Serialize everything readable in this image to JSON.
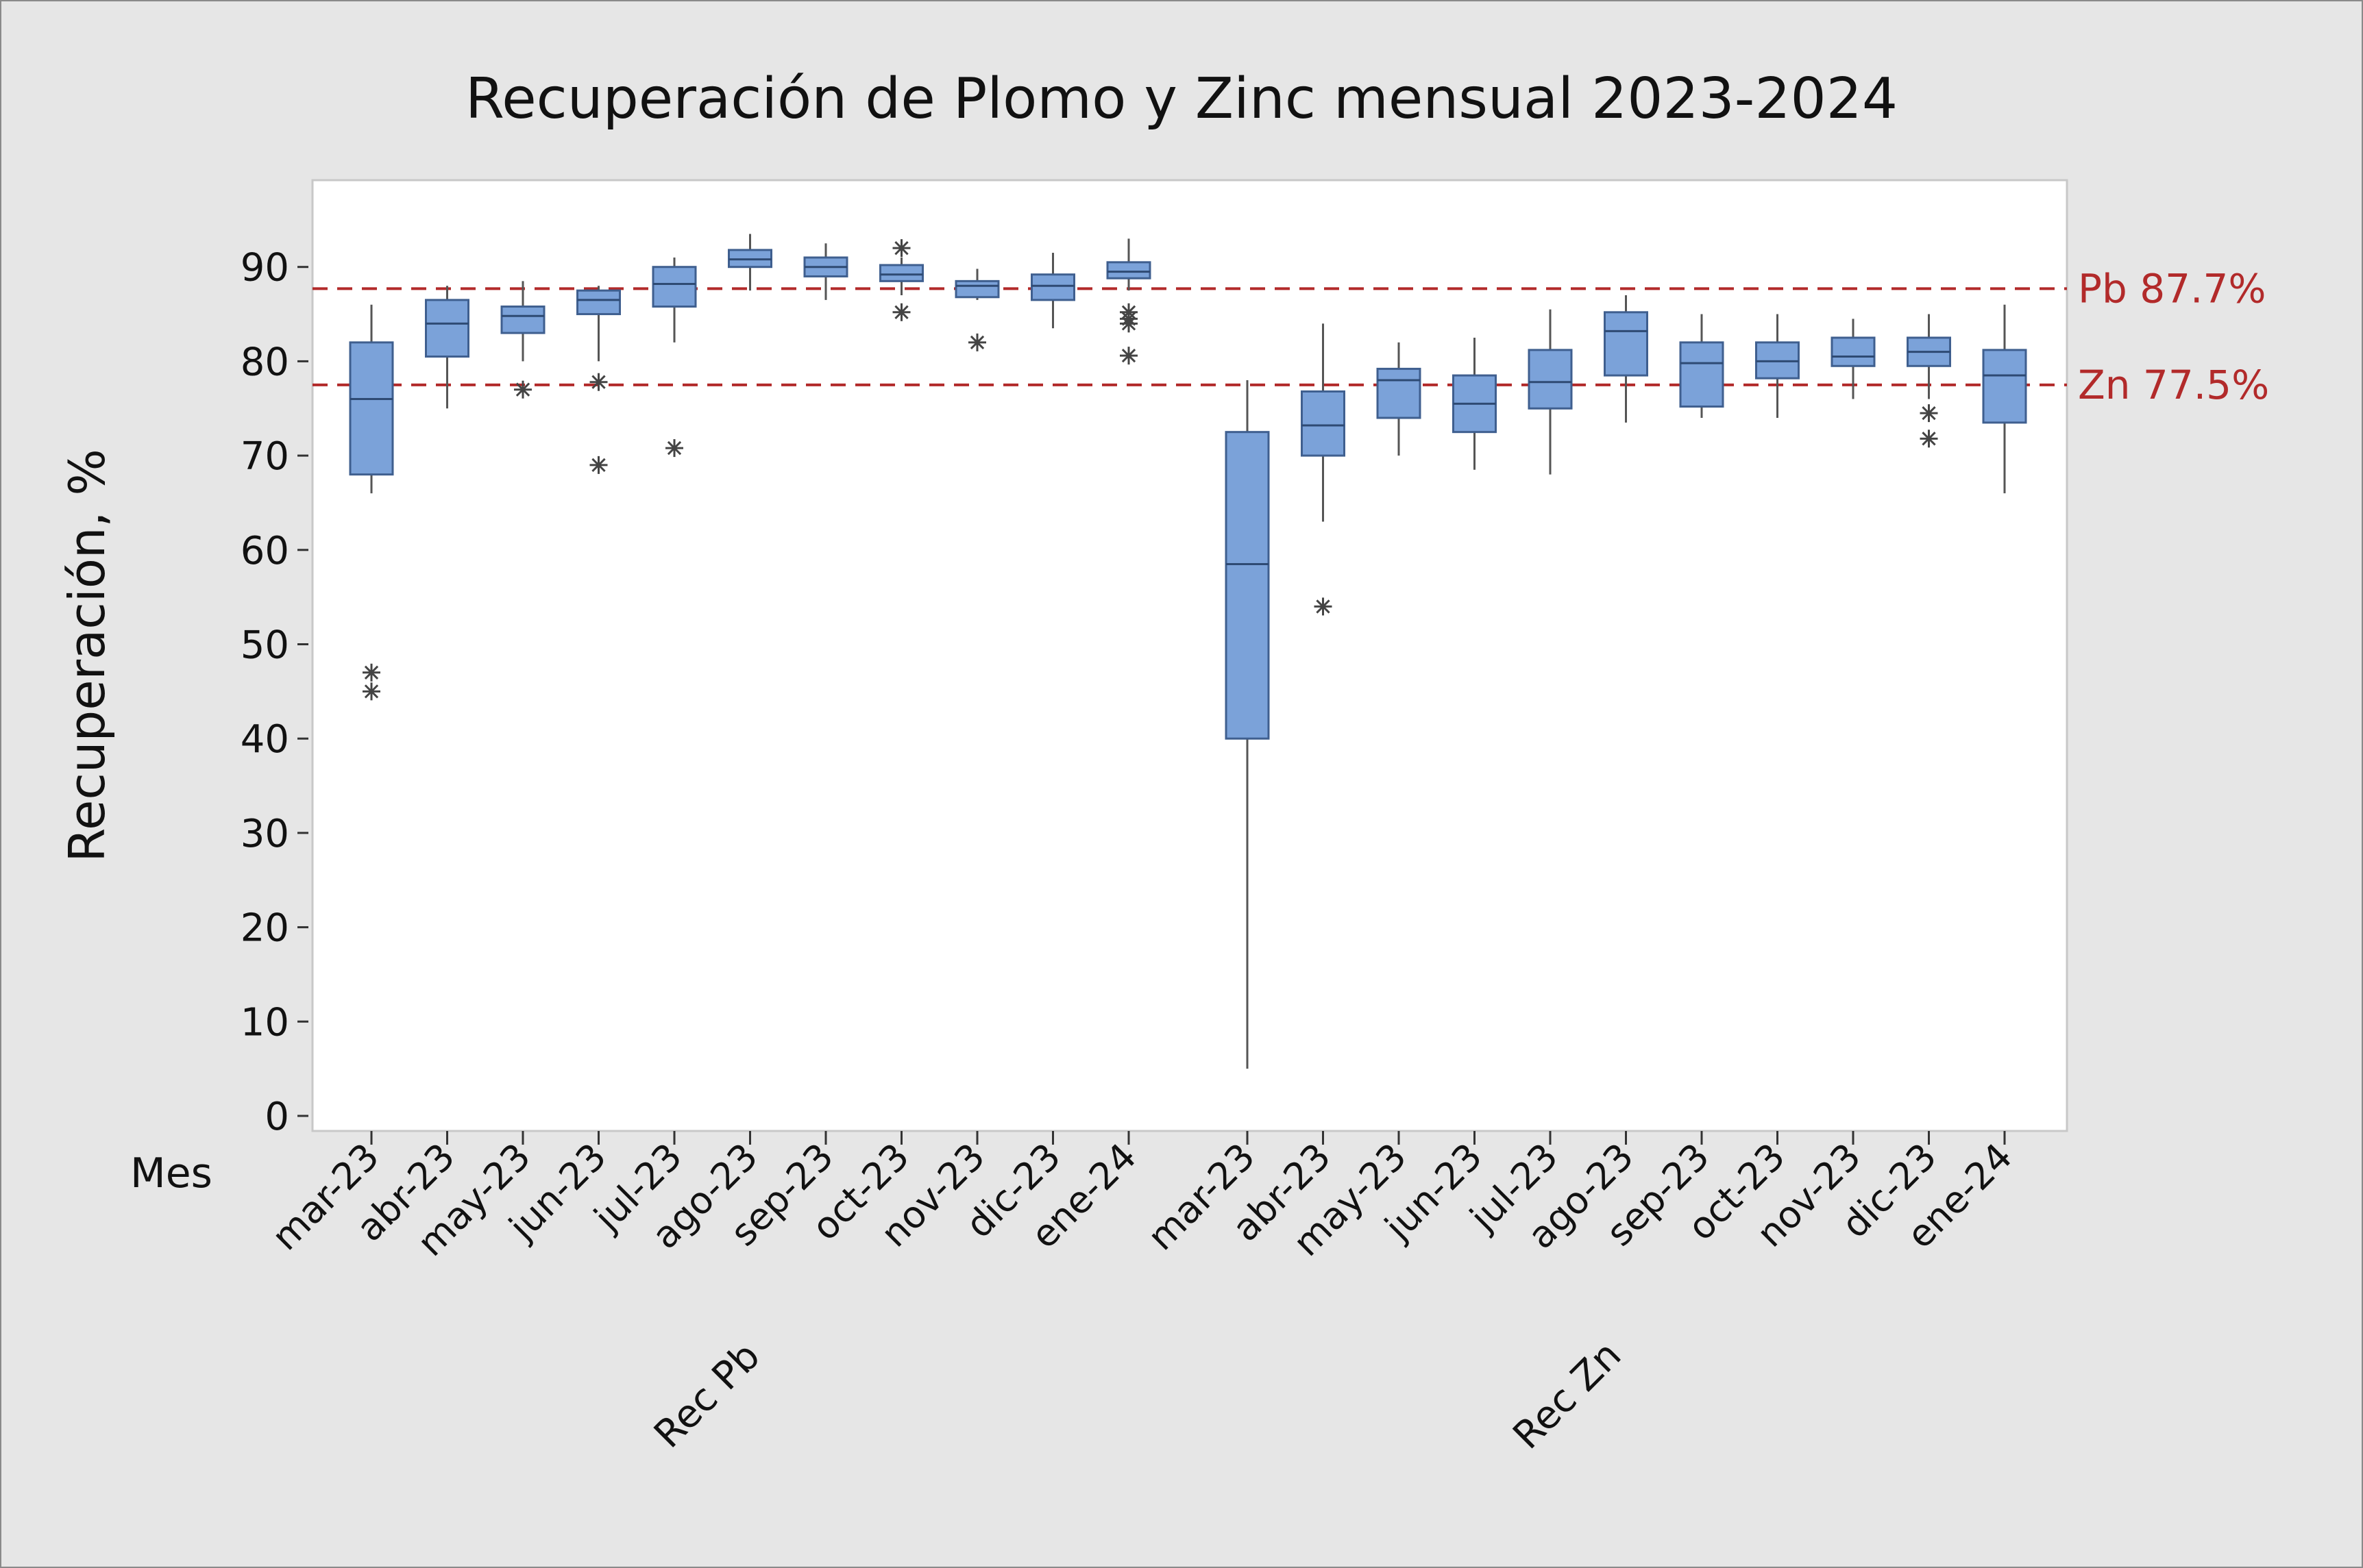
{
  "chart_data": {
    "type": "box",
    "title": "Recuperación de Plomo y Zinc mensual 2023-2024",
    "ylabel": "Recuperación, %",
    "xlabel_row_title": "Mes",
    "ylim": [
      0,
      96
    ],
    "yticks": [
      0,
      10,
      20,
      30,
      40,
      50,
      60,
      70,
      80,
      90
    ],
    "grid": false,
    "reference_lines": [
      {
        "label": "Pb 87.7%",
        "value": 87.7,
        "color": "#b22a2a"
      },
      {
        "label": "Zn 77.5%",
        "value": 77.5,
        "color": "#b22a2a"
      }
    ],
    "box_color": "#7ba2d9",
    "groups": [
      {
        "label": "Rec Pb",
        "boxes": [
          {
            "month": "mar-23",
            "q1": 68.0,
            "median": 76.0,
            "q3": 82.0,
            "whisker_low": 66.0,
            "whisker_high": 86.0,
            "outliers": [
              47.0,
              45.0
            ]
          },
          {
            "month": "abr-23",
            "q1": 80.5,
            "median": 84.0,
            "q3": 86.5,
            "whisker_low": 75.0,
            "whisker_high": 88.0,
            "outliers": []
          },
          {
            "month": "may-23",
            "q1": 83.0,
            "median": 84.8,
            "q3": 85.8,
            "whisker_low": 80.0,
            "whisker_high": 88.5,
            "outliers": [
              77.0
            ]
          },
          {
            "month": "jun-23",
            "q1": 85.0,
            "median": 86.5,
            "q3": 87.5,
            "whisker_low": 80.0,
            "whisker_high": 88.0,
            "outliers": [
              77.8,
              69.0
            ]
          },
          {
            "month": "jul-23",
            "q1": 85.8,
            "median": 88.2,
            "q3": 90.0,
            "whisker_low": 82.0,
            "whisker_high": 91.0,
            "outliers": [
              70.8
            ]
          },
          {
            "month": "ago-23",
            "q1": 90.0,
            "median": 90.8,
            "q3": 91.8,
            "whisker_low": 87.5,
            "whisker_high": 93.5,
            "outliers": []
          },
          {
            "month": "sep-23",
            "q1": 89.0,
            "median": 90.0,
            "q3": 91.0,
            "whisker_low": 86.5,
            "whisker_high": 92.5,
            "outliers": []
          },
          {
            "month": "oct-23",
            "q1": 88.5,
            "median": 89.2,
            "q3": 90.2,
            "whisker_low": 87.0,
            "whisker_high": 91.0,
            "outliers": [
              92.0,
              85.2
            ]
          },
          {
            "month": "nov-23",
            "q1": 86.8,
            "median": 88.0,
            "q3": 88.5,
            "whisker_low": 86.5,
            "whisker_high": 89.8,
            "outliers": [
              82.0
            ]
          },
          {
            "month": "dic-23",
            "q1": 86.5,
            "median": 88.0,
            "q3": 89.2,
            "whisker_low": 83.5,
            "whisker_high": 91.5,
            "outliers": []
          },
          {
            "month": "ene-24",
            "q1": 88.8,
            "median": 89.5,
            "q3": 90.5,
            "whisker_low": 87.5,
            "whisker_high": 93.0,
            "outliers": [
              85.2,
              84.5,
              84.0,
              80.6
            ]
          }
        ]
      },
      {
        "label": "Rec Zn",
        "boxes": [
          {
            "month": "mar-23",
            "q1": 40.0,
            "median": 58.5,
            "q3": 72.5,
            "whisker_low": 5.0,
            "whisker_high": 78.0,
            "outliers": []
          },
          {
            "month": "abr-23",
            "q1": 70.0,
            "median": 73.2,
            "q3": 76.8,
            "whisker_low": 63.0,
            "whisker_high": 84.0,
            "outliers": [
              54.0
            ]
          },
          {
            "month": "may-23",
            "q1": 74.0,
            "median": 78.0,
            "q3": 79.2,
            "whisker_low": 70.0,
            "whisker_high": 82.0,
            "outliers": []
          },
          {
            "month": "jun-23",
            "q1": 72.5,
            "median": 75.5,
            "q3": 78.5,
            "whisker_low": 68.5,
            "whisker_high": 82.5,
            "outliers": []
          },
          {
            "month": "jul-23",
            "q1": 75.0,
            "median": 77.8,
            "q3": 81.2,
            "whisker_low": 68.0,
            "whisker_high": 85.5,
            "outliers": []
          },
          {
            "month": "ago-23",
            "q1": 78.5,
            "median": 83.2,
            "q3": 85.2,
            "whisker_low": 73.5,
            "whisker_high": 87.0,
            "outliers": []
          },
          {
            "month": "sep-23",
            "q1": 75.2,
            "median": 79.8,
            "q3": 82.0,
            "whisker_low": 74.0,
            "whisker_high": 85.0,
            "outliers": []
          },
          {
            "month": "oct-23",
            "q1": 78.2,
            "median": 80.0,
            "q3": 82.0,
            "whisker_low": 74.0,
            "whisker_high": 85.0,
            "outliers": []
          },
          {
            "month": "nov-23",
            "q1": 79.5,
            "median": 80.5,
            "q3": 82.5,
            "whisker_low": 76.0,
            "whisker_high": 84.5,
            "outliers": []
          },
          {
            "month": "dic-23",
            "q1": 79.5,
            "median": 81.0,
            "q3": 82.5,
            "whisker_low": 76.0,
            "whisker_high": 85.0,
            "outliers": [
              74.5,
              71.8
            ]
          },
          {
            "month": "ene-24",
            "q1": 73.5,
            "median": 78.5,
            "q3": 81.2,
            "whisker_low": 66.0,
            "whisker_high": 86.0,
            "outliers": []
          }
        ]
      }
    ]
  }
}
